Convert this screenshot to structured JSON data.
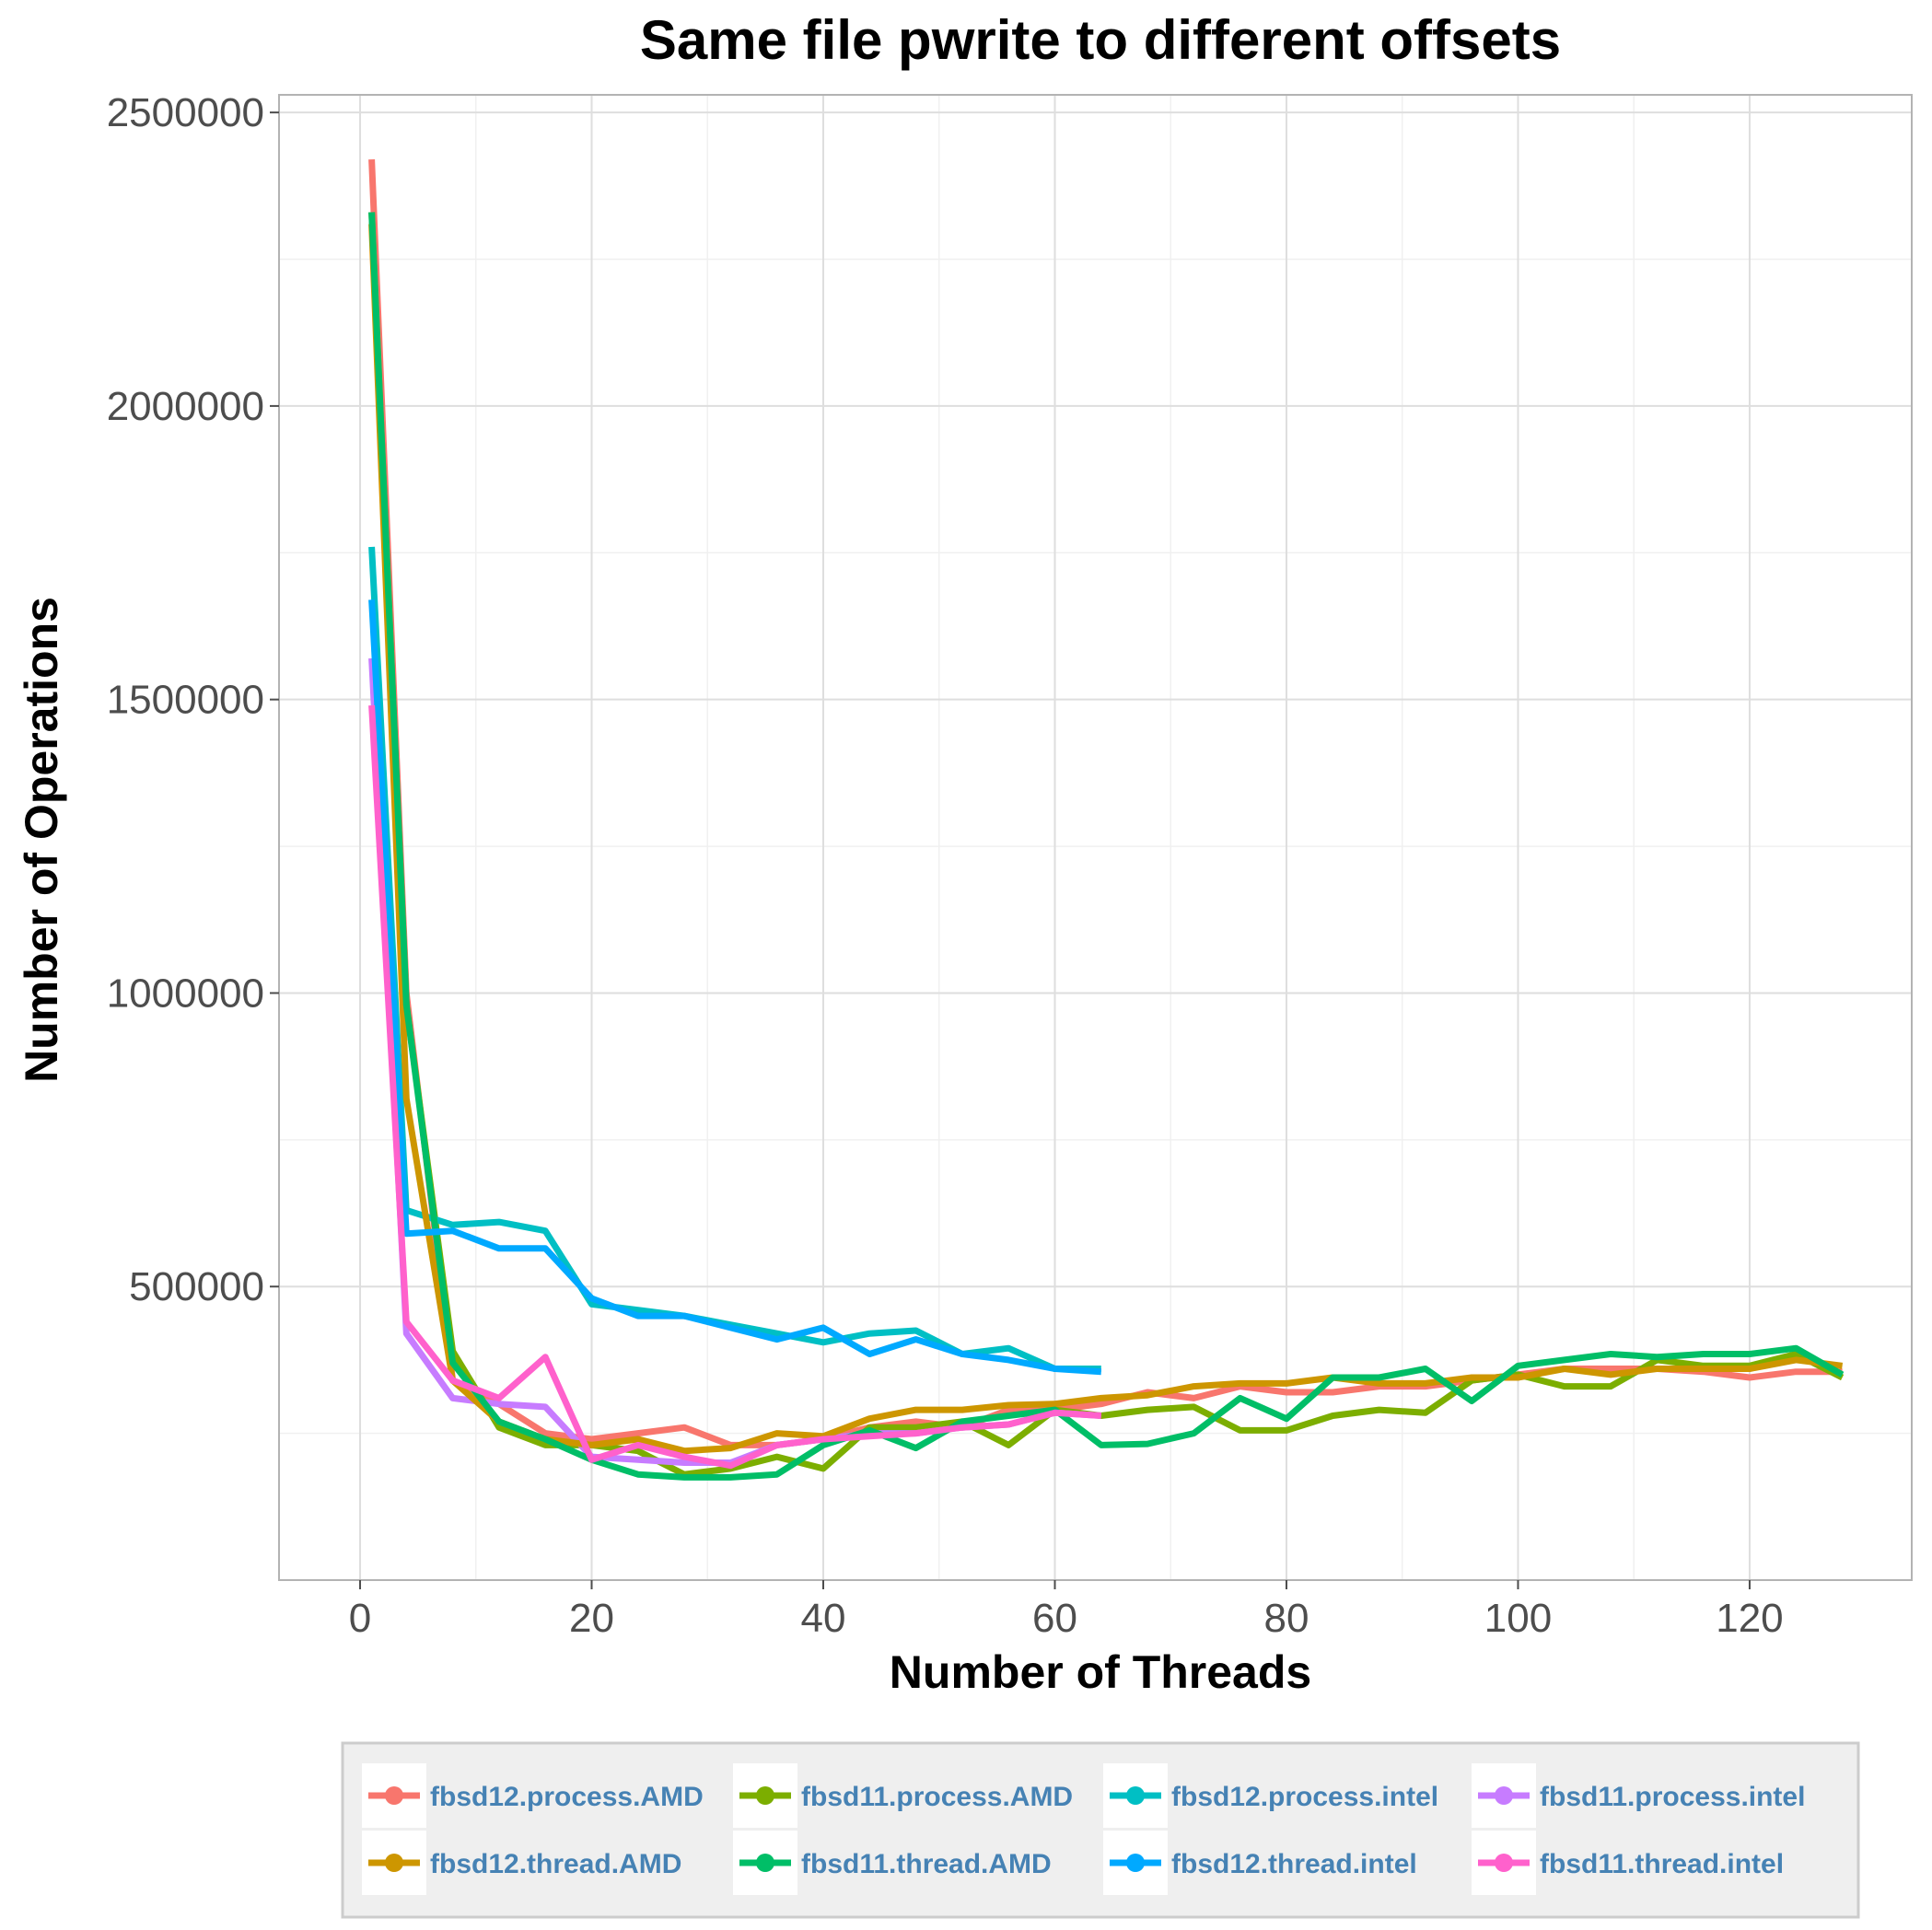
{
  "chart_data": {
    "type": "line",
    "title": "Same file pwrite to different offsets",
    "xlabel": "Number of Threads",
    "ylabel": "Number of Operations",
    "xlim": [
      -7,
      134
    ],
    "ylim": [
      0,
      2530000
    ],
    "x_ticks": [
      0,
      20,
      40,
      60,
      80,
      100,
      120
    ],
    "y_ticks": [
      500000,
      1000000,
      1500000,
      2000000,
      2500000
    ],
    "grid": true,
    "legend_position": "bottom",
    "series": [
      {
        "name": "fbsd12.process.AMD",
        "color": "#F8766D",
        "x": [
          1,
          4,
          8,
          12,
          16,
          20,
          24,
          28,
          32,
          36,
          40,
          44,
          48,
          52,
          56,
          60,
          64,
          68,
          72,
          76,
          80,
          84,
          88,
          92,
          96,
          100,
          104,
          108,
          112,
          116,
          120,
          124,
          128
        ],
        "y": [
          2420000,
          1000000,
          340000,
          300000,
          250000,
          240000,
          250000,
          260000,
          230000,
          230000,
          240000,
          260000,
          270000,
          260000,
          290000,
          290000,
          300000,
          320000,
          310000,
          330000,
          320000,
          320000,
          330000,
          330000,
          340000,
          350000,
          360000,
          360000,
          360000,
          355000,
          345000,
          355000,
          355000
        ]
      },
      {
        "name": "fbsd11.process.AMD",
        "color": "#7CAE00",
        "x": [
          1,
          4,
          8,
          12,
          16,
          20,
          24,
          28,
          32,
          36,
          40,
          44,
          48,
          52,
          56,
          60,
          64,
          68,
          72,
          76,
          80,
          84,
          88,
          92,
          96,
          100,
          104,
          108,
          112,
          116,
          120,
          124,
          128
        ],
        "y": [
          2330000,
          980000,
          390000,
          260000,
          230000,
          230000,
          220000,
          180000,
          190000,
          210000,
          190000,
          260000,
          260000,
          270000,
          230000,
          290000,
          280000,
          290000,
          295000,
          255000,
          255000,
          280000,
          290000,
          285000,
          340000,
          350000,
          330000,
          330000,
          375000,
          365000,
          365000,
          385000,
          345000
        ]
      },
      {
        "name": "fbsd12.process.intel",
        "color": "#00BFC4",
        "x": [
          1,
          4,
          8,
          12,
          16,
          20,
          24,
          28,
          32,
          36,
          40,
          44,
          48,
          52,
          56,
          60,
          64
        ],
        "y": [
          1760000,
          630000,
          605000,
          610000,
          595000,
          470000,
          460000,
          450000,
          435000,
          420000,
          405000,
          420000,
          425000,
          385000,
          395000,
          360000,
          360000
        ]
      },
      {
        "name": "fbsd11.process.intel",
        "color": "#C77CFF",
        "x": [
          1,
          4,
          8,
          12,
          16,
          20,
          24,
          28,
          32,
          36,
          40,
          44,
          48,
          52,
          56,
          60,
          64
        ],
        "y": [
          1570000,
          420000,
          310000,
          300000,
          295000,
          210000,
          205000,
          200000,
          200000,
          230000,
          240000,
          250000,
          250000,
          260000,
          265000,
          285000,
          280000
        ]
      },
      {
        "name": "fbsd12.thread.AMD",
        "color": "#CD9600",
        "x": [
          1,
          4,
          8,
          12,
          16,
          20,
          24,
          28,
          32,
          36,
          40,
          44,
          48,
          52,
          56,
          60,
          64,
          68,
          72,
          76,
          80,
          84,
          88,
          92,
          96,
          100,
          104,
          108,
          112,
          116,
          120,
          124,
          128
        ],
        "y": [
          2310000,
          820000,
          340000,
          270000,
          240000,
          230000,
          240000,
          220000,
          225000,
          250000,
          245000,
          275000,
          290000,
          290000,
          298000,
          300000,
          310000,
          315000,
          330000,
          335000,
          335000,
          345000,
          335000,
          335000,
          345000,
          345000,
          360000,
          350000,
          360000,
          360000,
          360000,
          375000,
          365000
        ]
      },
      {
        "name": "fbsd11.thread.AMD",
        "color": "#00BE67",
        "x": [
          1,
          4,
          8,
          12,
          16,
          20,
          24,
          28,
          32,
          36,
          40,
          44,
          48,
          52,
          56,
          60,
          64,
          68,
          72,
          76,
          80,
          84,
          88,
          92,
          96,
          100,
          104,
          108,
          112,
          116,
          120,
          124,
          128
        ],
        "y": [
          2330000,
          980000,
          370000,
          270000,
          240000,
          205000,
          180000,
          175000,
          175000,
          180000,
          230000,
          255000,
          225000,
          270000,
          280000,
          290000,
          230000,
          232000,
          250000,
          310000,
          275000,
          345000,
          345000,
          360000,
          305000,
          365000,
          375000,
          385000,
          380000,
          385000,
          385000,
          395000,
          350000
        ]
      },
      {
        "name": "fbsd12.thread.intel",
        "color": "#00A9FF",
        "x": [
          1,
          4,
          8,
          12,
          16,
          20,
          24,
          28,
          32,
          36,
          40,
          44,
          48,
          52,
          56,
          60,
          64
        ],
        "y": [
          1670000,
          590000,
          595000,
          565000,
          565000,
          480000,
          450000,
          450000,
          430000,
          410000,
          430000,
          385000,
          410000,
          385000,
          375000,
          360000,
          355000
        ]
      },
      {
        "name": "fbsd11.thread.intel",
        "color": "#FF61CC",
        "x": [
          1,
          4,
          8,
          12,
          16,
          20,
          24,
          28,
          32,
          36,
          40,
          44,
          48,
          52,
          56,
          60,
          64
        ],
        "y": [
          1490000,
          440000,
          340000,
          310000,
          380000,
          205000,
          230000,
          210000,
          195000,
          230000,
          240000,
          245000,
          250000,
          260000,
          265000,
          285000,
          280000
        ]
      }
    ],
    "legend_order": [
      "fbsd12.process.AMD",
      "fbsd11.process.AMD",
      "fbsd12.process.intel",
      "fbsd11.process.intel",
      "fbsd12.thread.AMD",
      "fbsd11.thread.AMD",
      "fbsd12.thread.intel",
      "fbsd11.thread.intel"
    ]
  }
}
